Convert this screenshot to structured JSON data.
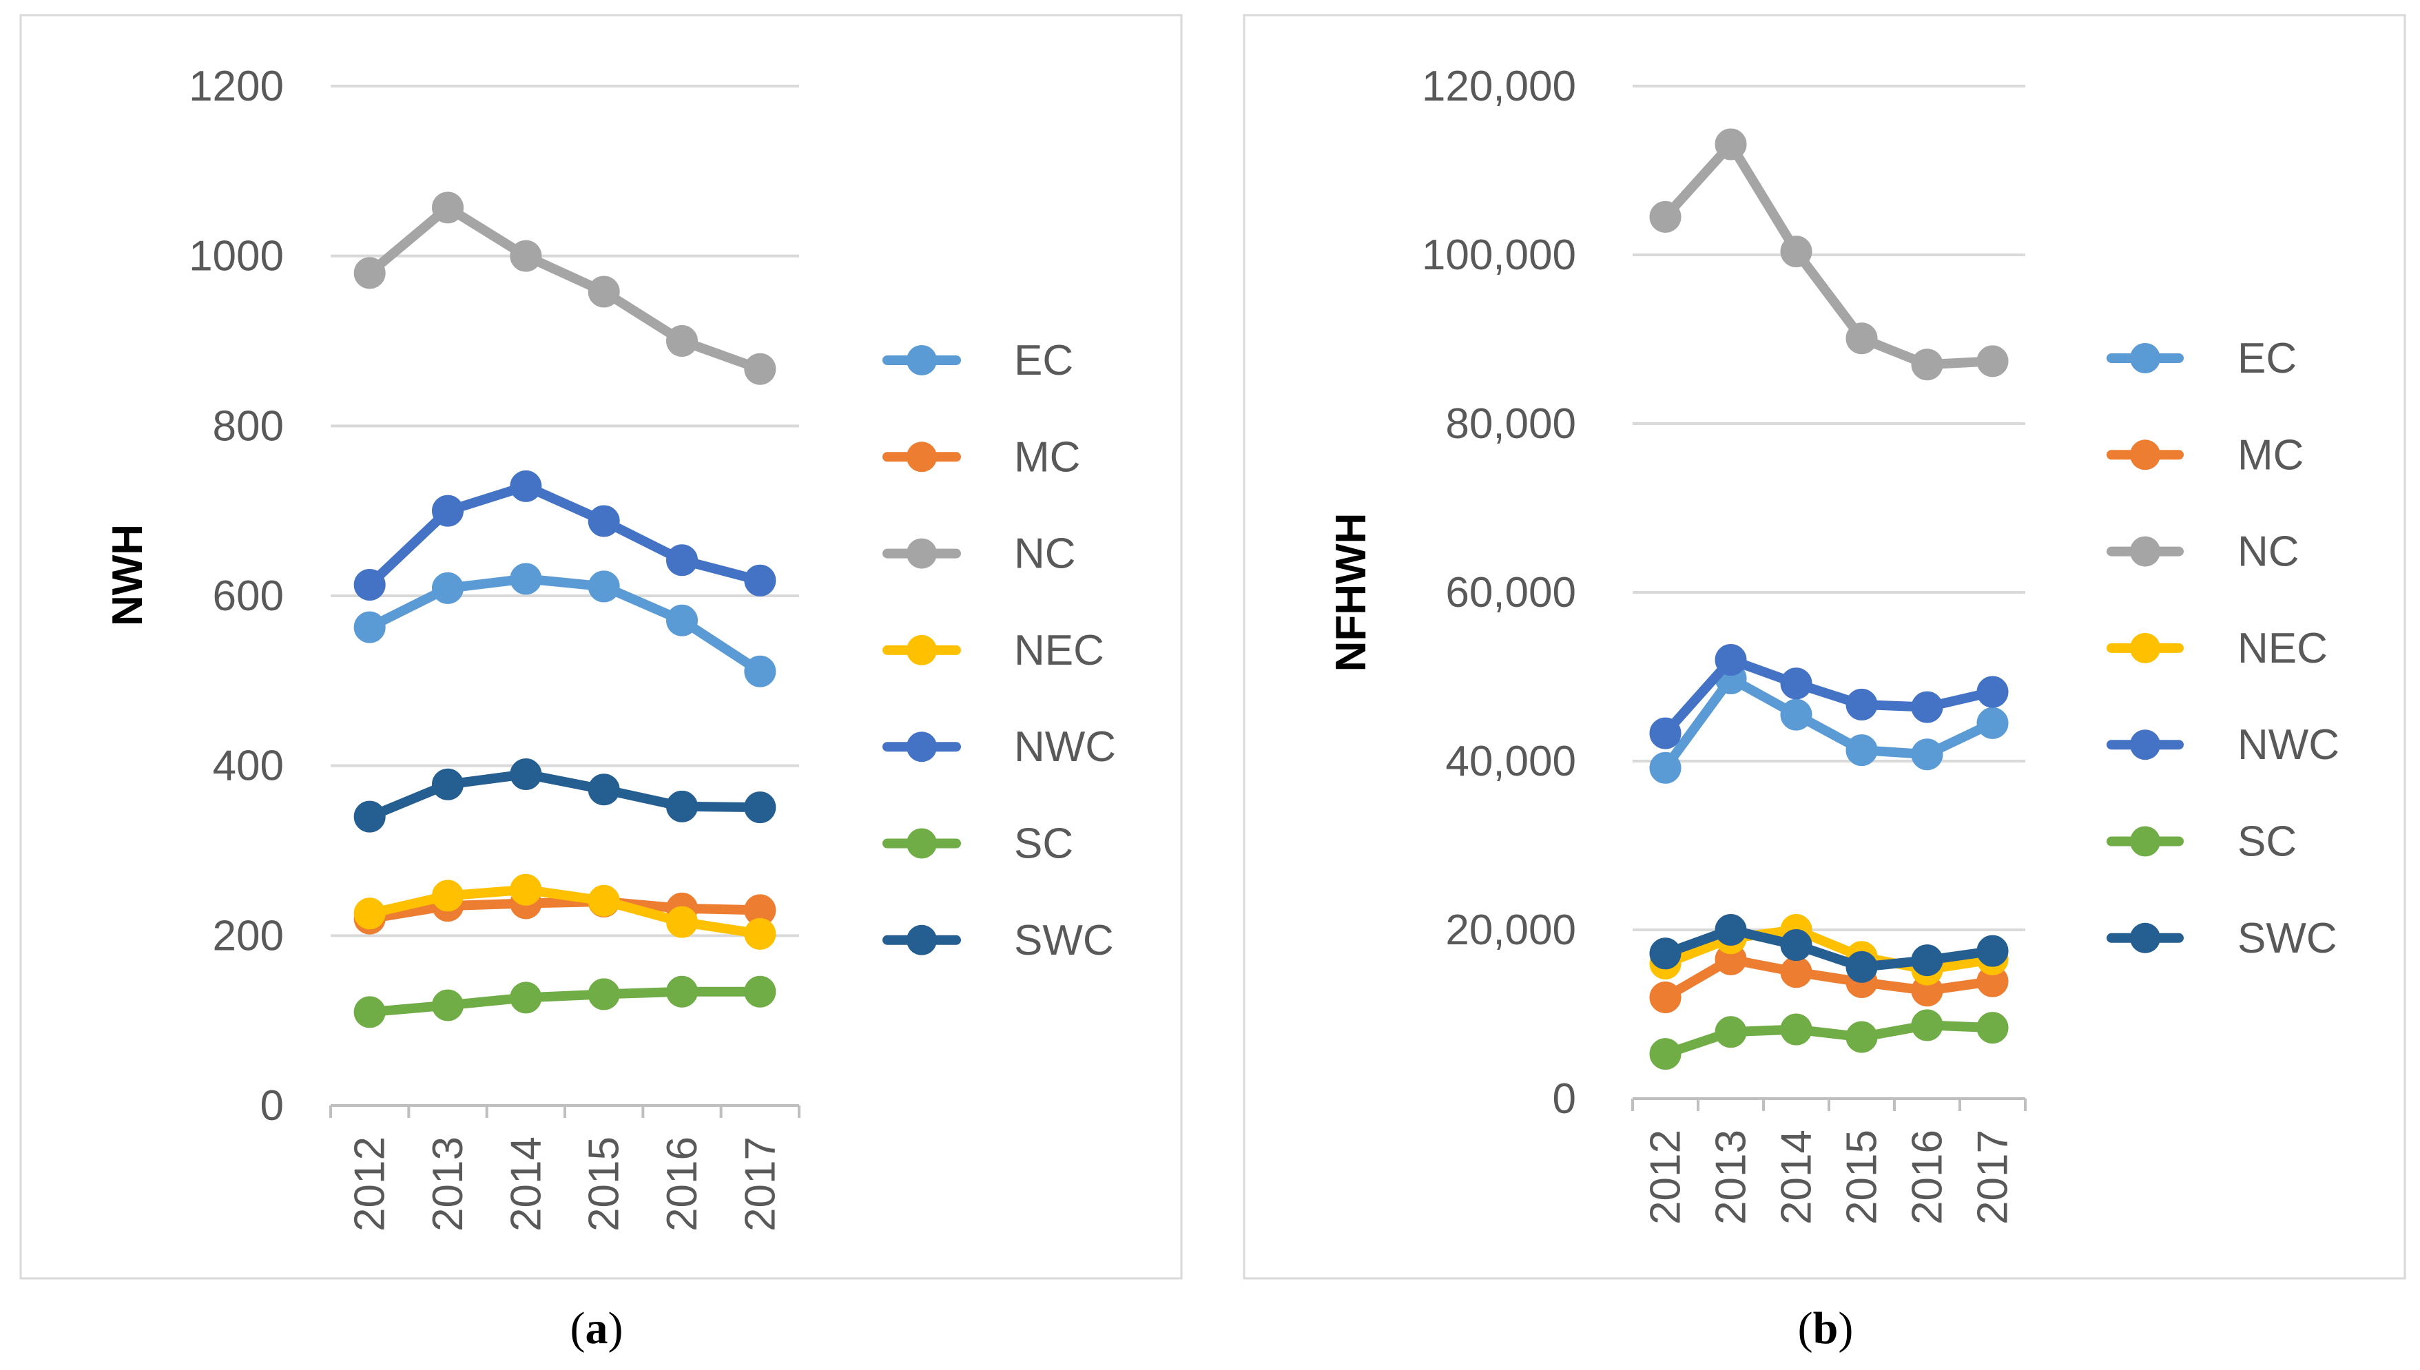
{
  "chart_data": [
    {
      "type": "line",
      "caption": "(a)",
      "caption_letter": "a",
      "xlabel": "",
      "ylabel": "NWH",
      "ylim": [
        0,
        1200
      ],
      "yticks": [
        0,
        200,
        400,
        600,
        800,
        1000,
        1200
      ],
      "ytick_labels": [
        "0",
        "200",
        "400",
        "600",
        "800",
        "1000",
        "1200"
      ],
      "categories": [
        "2012",
        "2013",
        "2014",
        "2015",
        "2016",
        "2017"
      ],
      "grid": true,
      "legend_position": "right",
      "series": [
        {
          "name": "EC",
          "color": "#5b9bd5",
          "values": [
            563,
            609,
            620,
            611,
            571,
            511
          ]
        },
        {
          "name": "MC",
          "color": "#ed7d31",
          "values": [
            220,
            235,
            238,
            240,
            232,
            230
          ]
        },
        {
          "name": "NC",
          "color": "#a5a5a5",
          "values": [
            980,
            1057,
            1000,
            958,
            900,
            867
          ]
        },
        {
          "name": "NEC",
          "color": "#ffc000",
          "values": [
            226,
            247,
            254,
            241,
            216,
            202
          ]
        },
        {
          "name": "NWC",
          "color": "#4472c4",
          "values": [
            613,
            700,
            729,
            688,
            642,
            618
          ]
        },
        {
          "name": "SC",
          "color": "#70ad47",
          "values": [
            110,
            118,
            127,
            131,
            134,
            134
          ]
        },
        {
          "name": "SWC",
          "color": "#255e91",
          "values": [
            340,
            378,
            390,
            372,
            352,
            351
          ]
        }
      ]
    },
    {
      "type": "line",
      "caption": "(b)",
      "caption_letter": "b",
      "xlabel": "",
      "ylabel": "NFHWH",
      "ylim": [
        0,
        120000
      ],
      "yticks": [
        0,
        20000,
        40000,
        60000,
        80000,
        100000,
        120000
      ],
      "ytick_labels": [
        "0",
        "20,000",
        "40,000",
        "60,000",
        "80,000",
        "100,000",
        "120,000"
      ],
      "categories": [
        "2012",
        "2013",
        "2014",
        "2015",
        "2016",
        "2017"
      ],
      "grid": true,
      "legend_position": "right",
      "series": [
        {
          "name": "EC",
          "color": "#5b9bd5",
          "values": [
            39200,
            49800,
            45500,
            41300,
            40800,
            44500
          ]
        },
        {
          "name": "MC",
          "color": "#ed7d31",
          "values": [
            12000,
            16500,
            15000,
            13800,
            12800,
            13900
          ]
        },
        {
          "name": "NC",
          "color": "#a5a5a5",
          "values": [
            104500,
            113100,
            100400,
            90100,
            87000,
            87400
          ]
        },
        {
          "name": "NEC",
          "color": "#ffc000",
          "values": [
            16000,
            19000,
            20000,
            16800,
            15300,
            16500
          ]
        },
        {
          "name": "NWC",
          "color": "#4472c4",
          "values": [
            43300,
            52000,
            49200,
            46700,
            46400,
            48200
          ]
        },
        {
          "name": "SC",
          "color": "#70ad47",
          "values": [
            5300,
            7900,
            8200,
            7300,
            8700,
            8400
          ]
        },
        {
          "name": "SWC",
          "color": "#255e91",
          "values": [
            17200,
            20000,
            18200,
            15600,
            16400,
            17500
          ]
        }
      ]
    }
  ]
}
